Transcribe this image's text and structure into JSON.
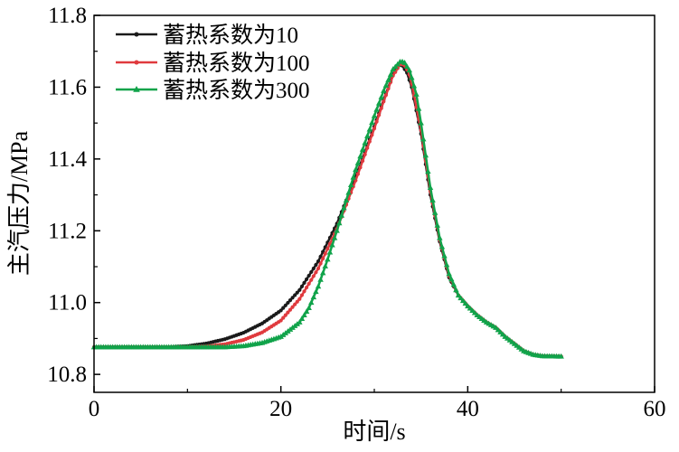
{
  "chart_data": {
    "type": "line",
    "title": "",
    "xlabel": "时间/s",
    "ylabel": "主汽压力/MPa",
    "xlim": [
      0,
      60
    ],
    "ylim": [
      10.75,
      11.8
    ],
    "xticks": [
      0,
      20,
      40,
      60
    ],
    "xtick_labels": [
      "0",
      "20",
      "40",
      "60"
    ],
    "yticks": [
      10.8,
      11.0,
      11.2,
      11.4,
      11.6,
      11.8
    ],
    "ytick_labels": [
      "10.8",
      "11.0",
      "11.2",
      "11.4",
      "11.6",
      "11.8"
    ],
    "grid": false,
    "legend_position": "top-left",
    "series": [
      {
        "name": "蓄热系数为10",
        "color": "#1a1a1a",
        "marker": "circle",
        "points": [
          [
            0,
            10.876
          ],
          [
            8,
            10.876
          ],
          [
            10,
            10.879
          ],
          [
            12,
            10.886
          ],
          [
            14,
            10.898
          ],
          [
            16,
            10.916
          ],
          [
            18,
            10.942
          ],
          [
            20,
            10.978
          ],
          [
            22,
            11.035
          ],
          [
            24,
            11.115
          ],
          [
            26,
            11.22
          ],
          [
            28,
            11.35
          ],
          [
            30,
            11.49
          ],
          [
            31,
            11.565
          ],
          [
            32,
            11.635
          ],
          [
            32.6,
            11.662
          ],
          [
            33,
            11.66
          ],
          [
            33.5,
            11.64
          ],
          [
            34,
            11.6
          ],
          [
            35,
            11.47
          ],
          [
            36,
            11.3
          ],
          [
            37,
            11.17
          ],
          [
            38,
            11.07
          ],
          [
            39,
            11.02
          ],
          [
            40,
            10.99
          ],
          [
            41,
            10.965
          ],
          [
            42,
            10.945
          ],
          [
            43,
            10.93
          ],
          [
            44,
            10.905
          ],
          [
            45,
            10.885
          ],
          [
            46,
            10.865
          ],
          [
            47,
            10.855
          ],
          [
            48,
            10.851
          ],
          [
            50,
            10.85
          ]
        ]
      },
      {
        "name": "蓄热系数为100",
        "color": "#e03a3e",
        "marker": "circle",
        "points": [
          [
            0,
            10.876
          ],
          [
            10,
            10.876
          ],
          [
            12,
            10.878
          ],
          [
            14,
            10.884
          ],
          [
            16,
            10.896
          ],
          [
            18,
            10.917
          ],
          [
            20,
            10.95
          ],
          [
            22,
            11.01
          ],
          [
            24,
            11.095
          ],
          [
            26,
            11.205
          ],
          [
            28,
            11.34
          ],
          [
            30,
            11.485
          ],
          [
            31,
            11.56
          ],
          [
            32,
            11.632
          ],
          [
            32.8,
            11.665
          ],
          [
            33.2,
            11.662
          ],
          [
            33.7,
            11.64
          ],
          [
            34,
            11.61
          ],
          [
            35,
            11.48
          ],
          [
            36,
            11.31
          ],
          [
            37,
            11.175
          ],
          [
            38,
            11.075
          ],
          [
            39,
            11.02
          ],
          [
            40,
            10.99
          ],
          [
            41,
            10.965
          ],
          [
            42,
            10.945
          ],
          [
            43,
            10.93
          ],
          [
            44,
            10.905
          ],
          [
            45,
            10.885
          ],
          [
            46,
            10.865
          ],
          [
            47,
            10.855
          ],
          [
            48,
            10.851
          ],
          [
            50,
            10.85
          ]
        ]
      },
      {
        "name": "蓄热系数为300",
        "color": "#10a34a",
        "marker": "triangle",
        "points": [
          [
            0,
            10.876
          ],
          [
            14,
            10.876
          ],
          [
            16,
            10.879
          ],
          [
            18,
            10.888
          ],
          [
            20,
            10.905
          ],
          [
            22,
            10.945
          ],
          [
            23,
            10.985
          ],
          [
            24,
            11.045
          ],
          [
            25,
            11.12
          ],
          [
            26,
            11.2
          ],
          [
            28,
            11.37
          ],
          [
            30,
            11.52
          ],
          [
            31,
            11.59
          ],
          [
            32,
            11.65
          ],
          [
            32.8,
            11.672
          ],
          [
            33.2,
            11.67
          ],
          [
            33.8,
            11.645
          ],
          [
            34.5,
            11.58
          ],
          [
            35,
            11.5
          ],
          [
            36,
            11.32
          ],
          [
            37,
            11.18
          ],
          [
            38,
            11.08
          ],
          [
            39,
            11.02
          ],
          [
            40,
            10.99
          ],
          [
            41,
            10.965
          ],
          [
            42,
            10.945
          ],
          [
            43,
            10.93
          ],
          [
            44,
            10.905
          ],
          [
            45,
            10.885
          ],
          [
            46,
            10.865
          ],
          [
            47,
            10.855
          ],
          [
            48,
            10.851
          ],
          [
            50,
            10.85
          ]
        ]
      }
    ]
  }
}
